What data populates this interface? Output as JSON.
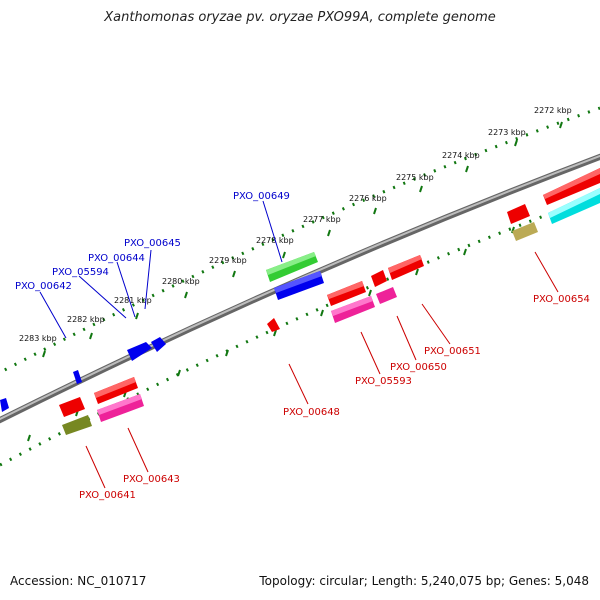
{
  "title": "Xanthomonas oryzae pv. oryzae PXO99A, complete genome",
  "footer": {
    "accession": "Accession: NC_010717",
    "info": "Topology: circular; Length: 5,240,075 bp; Genes: 5,048"
  },
  "colors": {
    "forward_label": "#0000cc",
    "reverse_label": "#cc0000",
    "scale_ticks": "#117711",
    "backbone": "#888888"
  },
  "scale": {
    "ticks": [
      {
        "kbp": 2272,
        "label": "2272 kbp"
      },
      {
        "kbp": 2273,
        "label": "2273 kbp"
      },
      {
        "kbp": 2274,
        "label": "2274 kbp"
      },
      {
        "kbp": 2275,
        "label": "2275 kbp"
      },
      {
        "kbp": 2276,
        "label": "2276 kbp"
      },
      {
        "kbp": 2277,
        "label": "2277 kbp"
      },
      {
        "kbp": 2278,
        "label": "2278 kbp"
      },
      {
        "kbp": 2279,
        "label": "2279 kbp"
      },
      {
        "kbp": 2280,
        "label": "2280 kbp"
      },
      {
        "kbp": 2281,
        "label": "2281 kbp"
      },
      {
        "kbp": 2282,
        "label": "2282 kbp"
      },
      {
        "kbp": 2283,
        "label": "2283 kbp"
      }
    ]
  },
  "genes": {
    "forward": [
      {
        "name": "PXO_00642",
        "color": "#0000ee"
      },
      {
        "name": "PXO_05594",
        "color": "#0000ee"
      },
      {
        "name": "PXO_00644",
        "color": "#0000ee"
      },
      {
        "name": "PXO_00645",
        "color": "#0000ee"
      },
      {
        "name": "PXO_00649",
        "color": "#33cc33"
      }
    ],
    "reverse": [
      {
        "name": "PXO_00641",
        "color": "#778822"
      },
      {
        "name": "PXO_00643",
        "color": "#ee2299"
      },
      {
        "name": "PXO_00648",
        "color": "#ee0000"
      },
      {
        "name": "PXO_05593",
        "color": "#ee2299"
      },
      {
        "name": "PXO_00650",
        "color": "#ee2299"
      },
      {
        "name": "PXO_00651",
        "color": "#ee0000"
      },
      {
        "name": "PXO_00654",
        "color": "#bbaa55"
      }
    ]
  }
}
